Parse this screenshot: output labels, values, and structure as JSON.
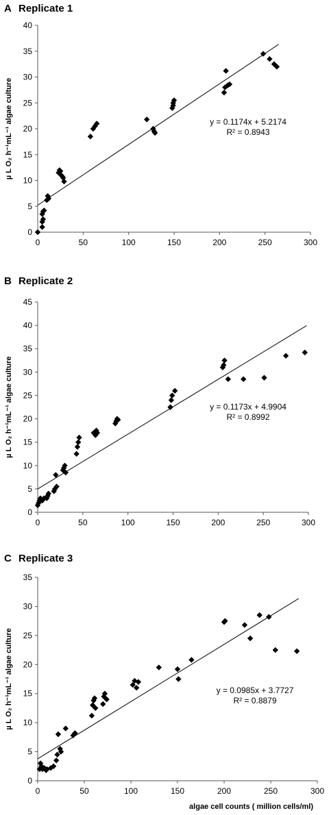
{
  "chart_data": [
    {
      "type": "scatter",
      "panel_letter": "A",
      "panel_title": "Replicate 1",
      "ylabel": "µ L O₂ h⁻¹mL⁻¹ algae culture",
      "xlabel": "",
      "xlim": [
        0,
        300
      ],
      "ylim": [
        0,
        40
      ],
      "xticks": [
        0,
        50,
        100,
        150,
        200,
        250,
        300
      ],
      "yticks": [
        0,
        5,
        10,
        15,
        20,
        25,
        30,
        35,
        40
      ],
      "marker": "diamond",
      "trendline": {
        "slope": 0.1174,
        "intercept": 5.2174,
        "x_range": [
          0,
          265
        ]
      },
      "equation": "y = 0.1174x + 5.2174",
      "r_squared": "R² = 0.8943",
      "points": [
        [
          0,
          0
        ],
        [
          5,
          1
        ],
        [
          5,
          2
        ],
        [
          6,
          2.5
        ],
        [
          5,
          3.5
        ],
        [
          6,
          4
        ],
        [
          7,
          4.2
        ],
        [
          10,
          6.2
        ],
        [
          11,
          7
        ],
        [
          12,
          6.5
        ],
        [
          23,
          11.5
        ],
        [
          24,
          12
        ],
        [
          25,
          11.8
        ],
        [
          26,
          11
        ],
        [
          27,
          10.8
        ],
        [
          28,
          10.5
        ],
        [
          29,
          9.8
        ],
        [
          58,
          18.5
        ],
        [
          61,
          20
        ],
        [
          63,
          20.5
        ],
        [
          65,
          21
        ],
        [
          120,
          21.8
        ],
        [
          127,
          20
        ],
        [
          128,
          19.5
        ],
        [
          129,
          19.2
        ],
        [
          148,
          24
        ],
        [
          149,
          24.5
        ],
        [
          149,
          25
        ],
        [
          150,
          25.5
        ],
        [
          205,
          27
        ],
        [
          206,
          28
        ],
        [
          207,
          31.2
        ],
        [
          209,
          28.4
        ],
        [
          211,
          28.6
        ],
        [
          248,
          34.5
        ],
        [
          255,
          33.5
        ],
        [
          260,
          32.5
        ],
        [
          263,
          32
        ]
      ]
    },
    {
      "type": "scatter",
      "panel_letter": "B",
      "panel_title": "Replicate 2",
      "ylabel": "µ L O₂ h⁻¹mL⁻¹ algae culture",
      "xlabel": "",
      "xlim": [
        0,
        300
      ],
      "ylim": [
        0,
        45
      ],
      "xticks": [
        0,
        50,
        100,
        150,
        200,
        250,
        300
      ],
      "yticks": [
        0,
        5,
        10,
        15,
        20,
        25,
        30,
        35,
        40,
        45
      ],
      "marker": "diamond",
      "trendline": {
        "slope": 0.1173,
        "intercept": 4.9904,
        "x_range": [
          0,
          298
        ]
      },
      "equation": "y = 0.1173x + 4.9904",
      "r_squared": "R² = 0.8992",
      "points": [
        [
          0,
          1.5
        ],
        [
          1,
          2
        ],
        [
          2,
          2.5
        ],
        [
          3,
          3
        ],
        [
          5,
          2.5
        ],
        [
          7,
          3
        ],
        [
          10,
          3
        ],
        [
          11,
          3.5
        ],
        [
          12,
          4
        ],
        [
          18,
          4.5
        ],
        [
          19,
          5
        ],
        [
          20,
          8
        ],
        [
          21,
          5.5
        ],
        [
          28,
          9
        ],
        [
          29,
          9.5
        ],
        [
          30,
          10
        ],
        [
          31,
          8.5
        ],
        [
          43,
          12.5
        ],
        [
          44,
          14
        ],
        [
          45,
          15
        ],
        [
          46,
          16
        ],
        [
          62,
          17
        ],
        [
          64,
          16.5
        ],
        [
          65,
          17.5
        ],
        [
          66,
          17
        ],
        [
          86,
          19
        ],
        [
          87,
          19.5
        ],
        [
          88,
          20
        ],
        [
          89,
          19.8
        ],
        [
          147,
          22.5
        ],
        [
          148,
          24
        ],
        [
          149,
          25
        ],
        [
          152,
          26
        ],
        [
          205,
          31
        ],
        [
          206,
          31.5
        ],
        [
          207,
          32.5
        ],
        [
          211,
          28.5
        ],
        [
          228,
          28.5
        ],
        [
          251,
          28.8
        ],
        [
          275,
          33.5
        ],
        [
          296,
          34.2
        ]
      ]
    },
    {
      "type": "scatter",
      "panel_letter": "C",
      "panel_title": "Replicate 3",
      "ylabel": "µ L O₂ h⁻¹mL⁻¹ algae culture",
      "xlabel": "algae cell counts ( million cells/ml)",
      "xlim": [
        0,
        300
      ],
      "ylim": [
        0,
        35
      ],
      "xticks": [
        0,
        50,
        100,
        150,
        200,
        250,
        300
      ],
      "yticks": [
        0,
        5,
        10,
        15,
        20,
        25,
        30,
        35
      ],
      "marker": "diamond",
      "trendline": {
        "slope": 0.0985,
        "intercept": 3.7727,
        "x_range": [
          0,
          280
        ]
      },
      "equation": "y = 0.0985x + 3.7727",
      "r_squared": "R² = 0.8879",
      "points": [
        [
          2,
          2
        ],
        [
          3,
          3
        ],
        [
          4,
          2.5
        ],
        [
          5,
          2
        ],
        [
          7,
          2.2
        ],
        [
          9,
          1.8
        ],
        [
          10,
          2
        ],
        [
          14,
          2.2
        ],
        [
          17,
          2.5
        ],
        [
          20,
          3.5
        ],
        [
          21,
          4.5
        ],
        [
          22,
          8
        ],
        [
          24,
          5.5
        ],
        [
          25,
          5
        ],
        [
          30,
          9
        ],
        [
          38,
          7.8
        ],
        [
          40,
          8.2
        ],
        [
          58,
          11.2
        ],
        [
          59,
          13
        ],
        [
          60,
          13.8
        ],
        [
          61,
          14.2
        ],
        [
          62,
          12.5
        ],
        [
          70,
          13.2
        ],
        [
          71,
          14.5
        ],
        [
          72,
          15
        ],
        [
          74,
          14
        ],
        [
          102,
          16.5
        ],
        [
          104,
          17.2
        ],
        [
          106,
          16
        ],
        [
          108,
          17
        ],
        [
          130,
          19.5
        ],
        [
          150,
          19.2
        ],
        [
          151,
          17.5
        ],
        [
          165,
          20.8
        ],
        [
          200,
          27.3
        ],
        [
          201,
          27.5
        ],
        [
          222,
          26.8
        ],
        [
          228,
          24.5
        ],
        [
          238,
          28.5
        ],
        [
          248,
          28.2
        ],
        [
          255,
          22.5
        ],
        [
          278,
          22.3
        ]
      ]
    }
  ]
}
